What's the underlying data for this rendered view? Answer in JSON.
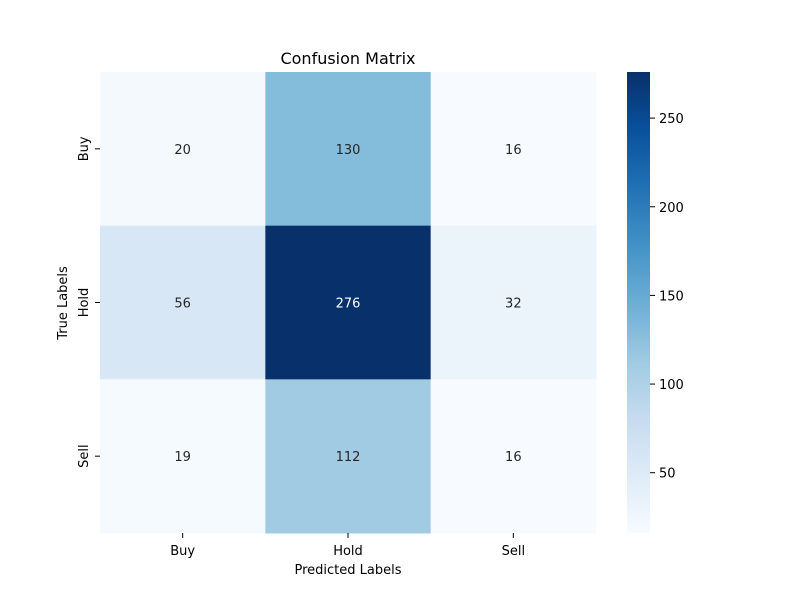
{
  "chart_data": {
    "type": "heatmap",
    "title": "Confusion Matrix",
    "xlabel": "Predicted Labels",
    "ylabel": "True Labels",
    "x_categories": [
      "Buy",
      "Hold",
      "Sell"
    ],
    "y_categories": [
      "Buy",
      "Hold",
      "Sell"
    ],
    "values": [
      [
        20,
        130,
        16
      ],
      [
        56,
        276,
        32
      ],
      [
        19,
        112,
        16
      ]
    ],
    "colormap": "Blues",
    "colorbar": {
      "min": 16,
      "max": 276,
      "ticks": [
        50,
        100,
        150,
        200,
        250
      ]
    },
    "grid": false
  }
}
